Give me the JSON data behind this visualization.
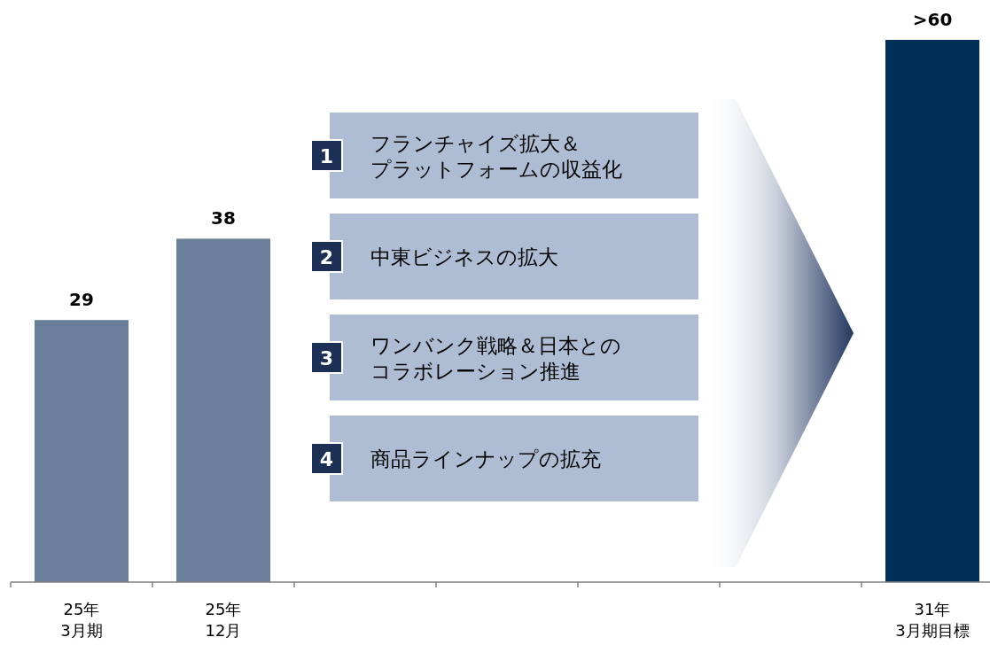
{
  "chart_data": {
    "type": "bar",
    "categories": [
      "25年\n3月期",
      "25年\n12月",
      null,
      null,
      null,
      null,
      "31年\n3月期目標"
    ],
    "values": [
      29,
      38,
      null,
      null,
      null,
      null,
      60
    ],
    "value_labels": [
      "29",
      "38",
      null,
      null,
      null,
      null,
      ">60"
    ],
    "colors": [
      "#697f99",
      "#697f99",
      null,
      null,
      null,
      null,
      "#003057"
    ],
    "annotations": [
      "1",
      "フランチャイズ拡大＆",
      "プラットフォームの収益化",
      "2",
      "中東ビジネスの拡大",
      "3",
      "ワンバンク戦略＆日本との",
      "コラボレーション推進",
      "4",
      "商品ラインナップの拡充"
    ]
  }
}
